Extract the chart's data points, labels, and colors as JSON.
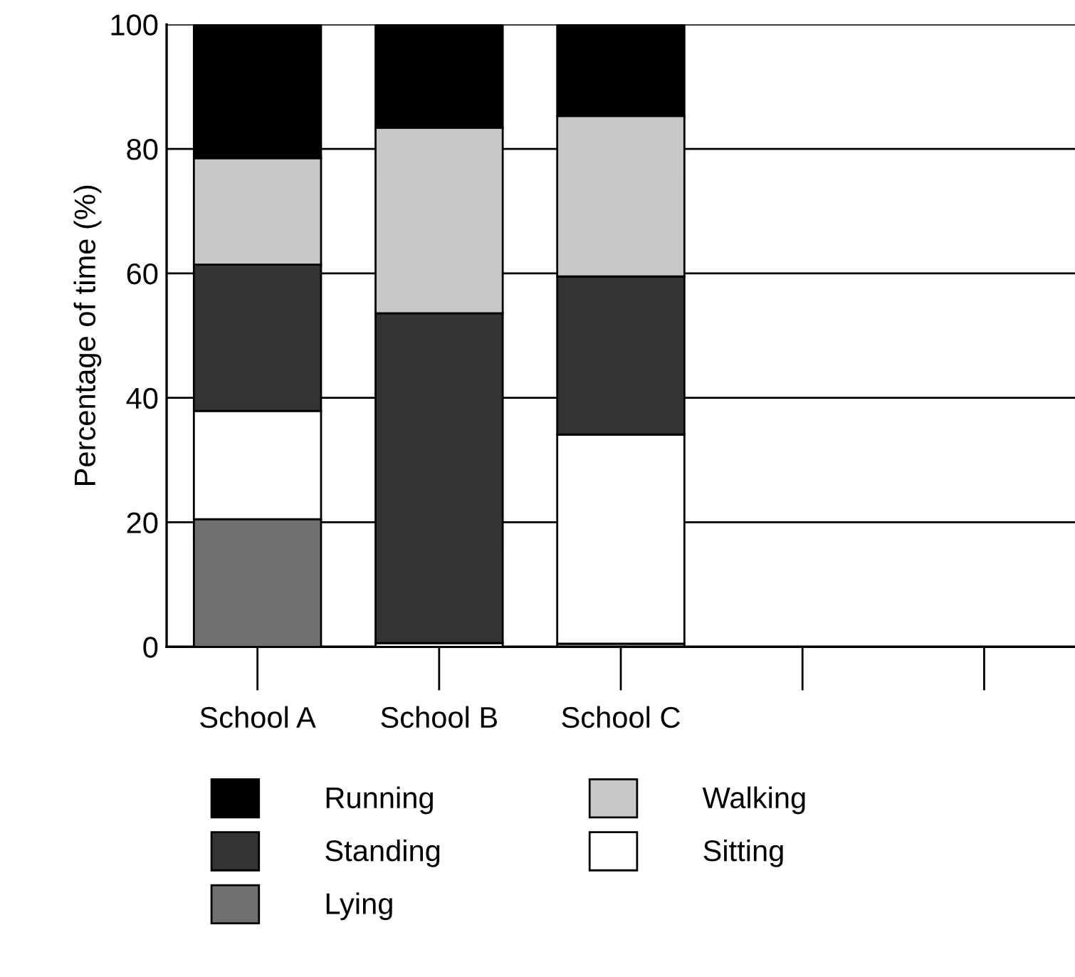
{
  "chart_data": {
    "type": "bar",
    "stacked": true,
    "ylabel": "Percentage of time (%)",
    "categories": [
      "School A",
      "School B",
      "School C",
      null,
      null
    ],
    "series": [
      {
        "name": "Lying",
        "color": "#707070",
        "values": [
          20.5,
          0,
          0.5,
          null,
          null
        ]
      },
      {
        "name": "Sitting",
        "color": "#ffffff",
        "values": [
          17.4,
          0.6,
          33.6,
          null,
          null
        ]
      },
      {
        "name": "Standing",
        "color": "#333333",
        "values": [
          23.5,
          53.0,
          25.4,
          null,
          null
        ]
      },
      {
        "name": "Walking",
        "color": "#c8c8c8",
        "values": [
          17.1,
          29.8,
          25.8,
          null,
          null
        ]
      },
      {
        "name": "Running",
        "color": "#000000",
        "values": [
          21.5,
          16.6,
          14.7,
          null,
          null
        ]
      }
    ],
    "ylim": [
      0,
      100
    ],
    "yticks": [
      0,
      20,
      40,
      60,
      80,
      100
    ],
    "grid": "y",
    "legend": "bottom"
  }
}
